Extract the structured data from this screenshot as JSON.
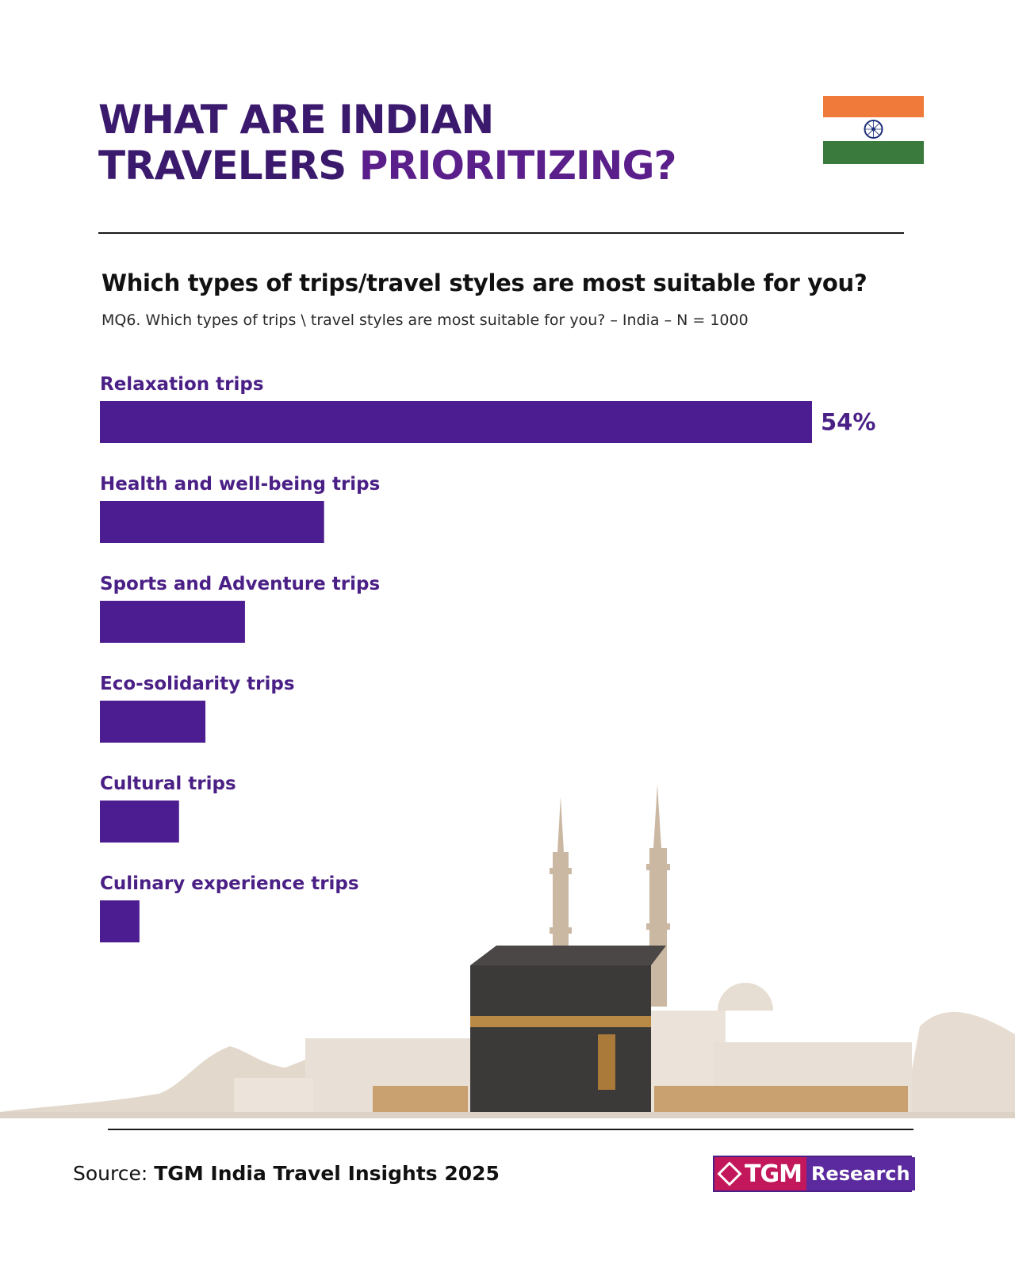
{
  "header": {
    "title_line1": "WHAT ARE INDIAN",
    "title_line2a": "TRAVELERS",
    "title_line2b": "PRIORITIZING?",
    "flag_icon": "india-flag-icon"
  },
  "question": "Which types of trips/travel styles are most suitable for you?",
  "subquestion": "MQ6. Which types of trips \\ travel styles are most suitable for you? – India – N = 1000",
  "chart_data": {
    "type": "bar",
    "orientation": "horizontal",
    "categories": [
      "Relaxation trips",
      "Health and well-being trips",
      "Sports and Adventure trips",
      "Eco-solidarity trips",
      "Cultural trips",
      "Culinary experience trips"
    ],
    "values": [
      54,
      17,
      11,
      8,
      6,
      3
    ],
    "data_labels": [
      "54%",
      "",
      "",
      "",
      "",
      ""
    ],
    "unit": "%",
    "xlim": [
      0,
      54
    ],
    "grid": false,
    "bar_color": "#4c1d91",
    "label_color": "#4a1f86"
  },
  "footer": {
    "source_prefix": "Source:",
    "source_name": "TGM India Travel Insights 2025",
    "logo_part1": "TGM",
    "logo_part2": "Research"
  },
  "colors": {
    "title": "#3b1a6e",
    "title_accent": "#5a1f8a",
    "flag_saffron": "#f07a3a",
    "flag_green": "#3a7a3c",
    "chakra": "#1e2f7a"
  }
}
